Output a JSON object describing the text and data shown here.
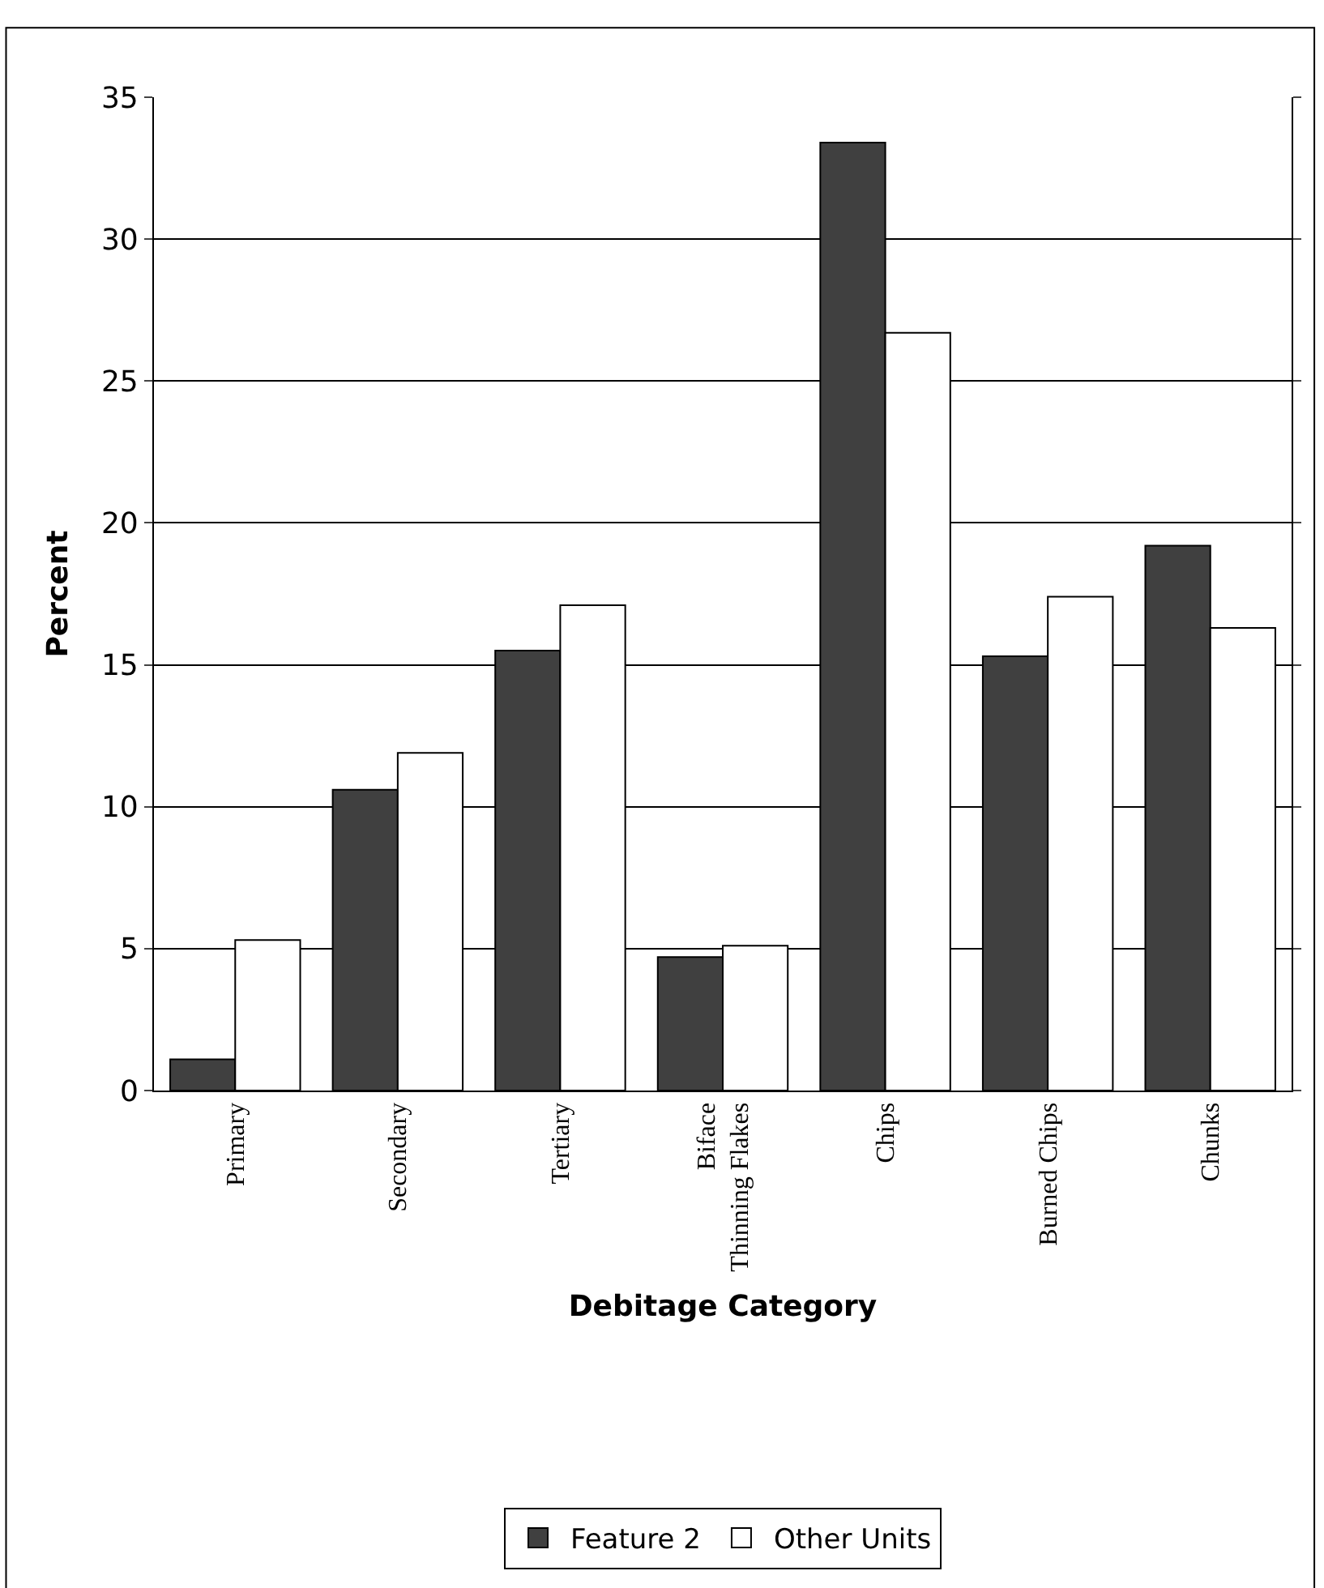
{
  "chart_data": {
    "type": "bar",
    "xlabel": "Debitage Category",
    "ylabel": "Percent",
    "categories": [
      "Primary",
      "Secondary",
      "Tertiary",
      "Biface Thinning Flakes",
      "Chips",
      "Burned Chips",
      "Chunks"
    ],
    "series": [
      {
        "name": "Feature 2",
        "color": "#404040",
        "values": [
          1.1,
          10.6,
          15.5,
          4.7,
          33.4,
          15.3,
          19.2
        ]
      },
      {
        "name": "Other Units",
        "color": "#ffffff",
        "values": [
          5.3,
          11.9,
          17.1,
          5.1,
          26.7,
          17.4,
          16.3
        ]
      }
    ],
    "ylim": [
      0,
      35
    ],
    "yticks": [
      0,
      5,
      10,
      15,
      20,
      25,
      30,
      35
    ],
    "grid": "y",
    "legend": "bottom"
  }
}
